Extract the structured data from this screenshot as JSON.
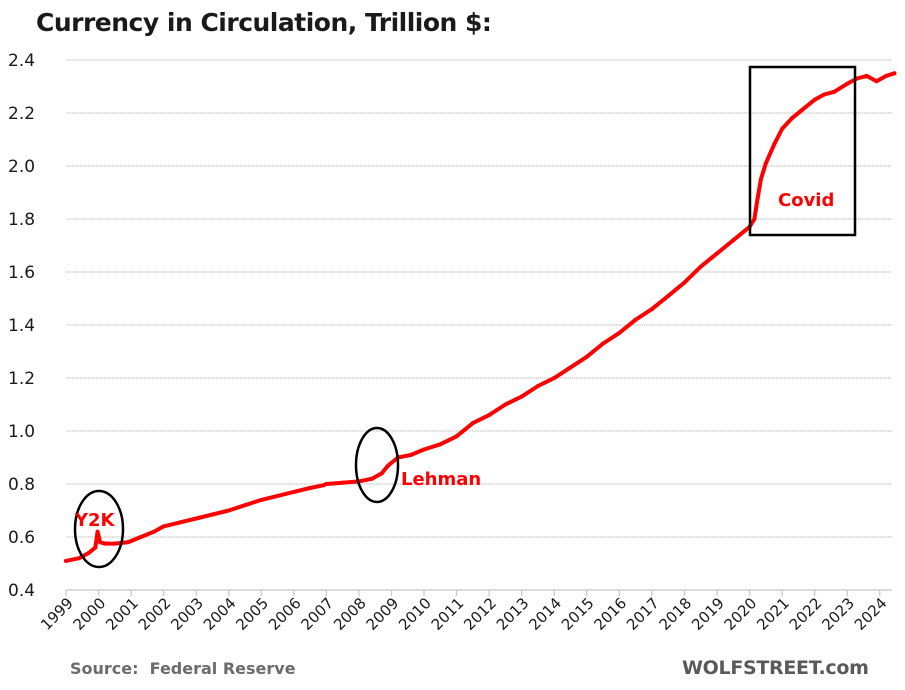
{
  "chart_data": {
    "type": "line",
    "title": "Currency in Circulation, Trillion $:",
    "xlabel": "",
    "ylabel": "",
    "ylim": [
      0.4,
      2.4
    ],
    "yticks": [
      "0.4",
      "0.6",
      "0.8",
      "1.0",
      "1.2",
      "1.4",
      "1.6",
      "1.8",
      "2.0",
      "2.2",
      "2.4"
    ],
    "xlim": [
      1999,
      2024.45
    ],
    "xticks": [
      "1999",
      "2000",
      "2001",
      "2002",
      "2003",
      "2004",
      "2005",
      "2006",
      "2007",
      "2008",
      "2009",
      "2010",
      "2011",
      "2012",
      "2013",
      "2014",
      "2015",
      "2016",
      "2017",
      "2018",
      "2019",
      "2020",
      "2021",
      "2022",
      "2023",
      "2024"
    ],
    "grid": true,
    "legend": "none",
    "series": [
      {
        "name": "Currency in Circulation",
        "color": "#ff0000",
        "x": [
          1999.0,
          1999.4,
          1999.7,
          1999.9,
          1999.97,
          2000.05,
          2000.2,
          2000.5,
          2000.9,
          2001.0,
          2001.3,
          2001.7,
          2002.0,
          2002.5,
          2003.0,
          2003.5,
          2004.0,
          2004.5,
          2005.0,
          2005.5,
          2006.0,
          2006.5,
          2006.9,
          2007.0,
          2007.5,
          2008.0,
          2008.4,
          2008.7,
          2008.9,
          2009.2,
          2009.6,
          2010.0,
          2010.5,
          2011.0,
          2011.5,
          2012.0,
          2012.5,
          2013.0,
          2013.5,
          2014.0,
          2014.5,
          2015.0,
          2015.5,
          2016.0,
          2016.5,
          2017.0,
          2017.5,
          2018.0,
          2018.5,
          2019.0,
          2019.5,
          2020.0,
          2020.15,
          2020.25,
          2020.35,
          2020.5,
          2020.75,
          2021.0,
          2021.3,
          2021.6,
          2022.0,
          2022.3,
          2022.6,
          2023.0,
          2023.3,
          2023.6,
          2023.9,
          2024.2,
          2024.45
        ],
        "values": [
          0.51,
          0.52,
          0.54,
          0.56,
          0.62,
          0.58,
          0.575,
          0.575,
          0.58,
          0.585,
          0.6,
          0.62,
          0.64,
          0.655,
          0.67,
          0.685,
          0.7,
          0.72,
          0.74,
          0.755,
          0.77,
          0.785,
          0.795,
          0.8,
          0.805,
          0.81,
          0.82,
          0.84,
          0.87,
          0.9,
          0.91,
          0.93,
          0.95,
          0.98,
          1.03,
          1.06,
          1.1,
          1.13,
          1.17,
          1.2,
          1.24,
          1.28,
          1.33,
          1.37,
          1.42,
          1.46,
          1.51,
          1.56,
          1.62,
          1.67,
          1.72,
          1.77,
          1.8,
          1.88,
          1.95,
          2.01,
          2.08,
          2.14,
          2.18,
          2.21,
          2.25,
          2.27,
          2.28,
          2.31,
          2.33,
          2.34,
          2.32,
          2.34,
          2.35
        ]
      }
    ],
    "annotations": [
      {
        "label": "Y2K",
        "shape": "ellipse",
        "x": 2000.0,
        "y": 0.64
      },
      {
        "label": "Lehman",
        "shape": "ellipse",
        "x": 2008.7,
        "y": 0.87
      },
      {
        "label": "Covid",
        "shape": "rectangle",
        "x_range": [
          2020.0,
          2023.3
        ],
        "y_range": [
          1.74,
          2.34
        ]
      }
    ]
  },
  "footer": {
    "source": "Source:  Federal Reserve",
    "brand": "WOLFSTREET.com"
  }
}
